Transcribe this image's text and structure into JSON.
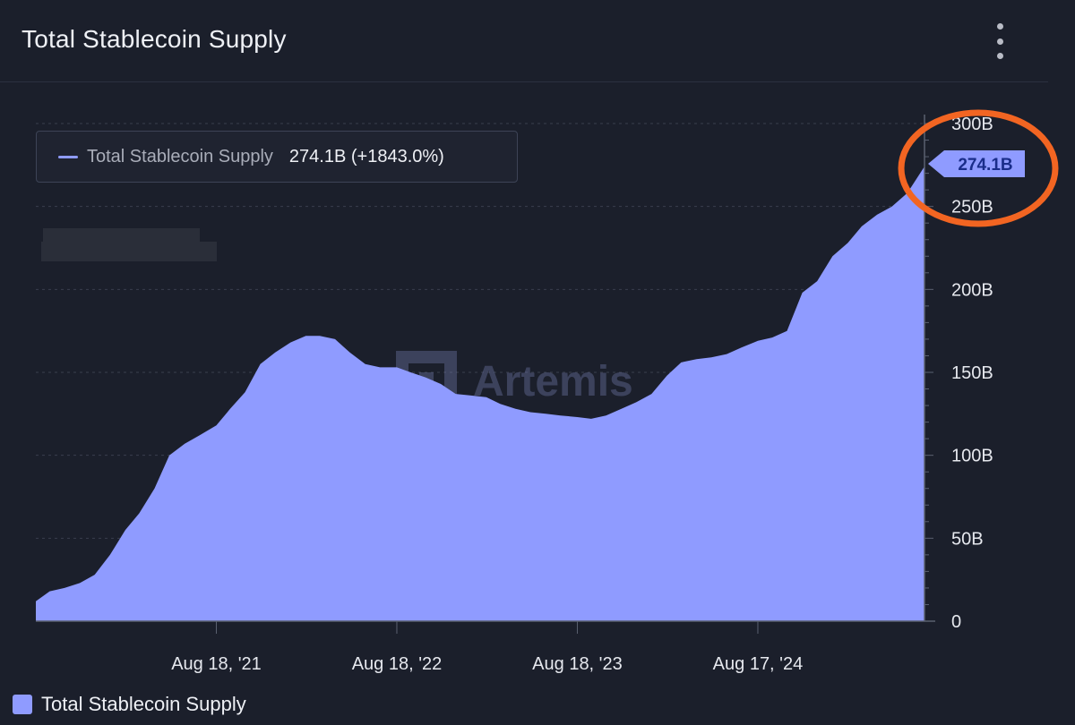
{
  "header": {
    "title": "Total Stablecoin Supply",
    "menu_icon": "kebab-menu-icon"
  },
  "tooltip": {
    "series_name": "Total Stablecoin Supply",
    "value_text": "274.1B (+1843.0%)"
  },
  "watermark": "Artemis",
  "legend": {
    "label": "Total Stablecoin Supply"
  },
  "colors": {
    "background": "#1b1f2b",
    "series": "#8f9bff",
    "annotation_circle": "#f26522"
  },
  "chart_data": {
    "type": "area",
    "title": "Total Stablecoin Supply",
    "x_tick_labels": [
      "Aug 18, '21",
      "Aug 18, '22",
      "Aug 18, '23",
      "Aug 17, '24"
    ],
    "y_tick_labels": [
      "0",
      "50B",
      "100B",
      "150B",
      "200B",
      "250B",
      "300B"
    ],
    "ylim": [
      0,
      300
    ],
    "grid": true,
    "legend_position": "bottom-left",
    "end_label": "274.1B",
    "series": [
      {
        "name": "Total Stablecoin Supply",
        "unit": "B",
        "points": [
          [
            "2020-08-18",
            12
          ],
          [
            "2020-09-15",
            18
          ],
          [
            "2020-10-15",
            20
          ],
          [
            "2020-11-15",
            23
          ],
          [
            "2020-12-15",
            28
          ],
          [
            "2021-01-15",
            40
          ],
          [
            "2021-02-15",
            55
          ],
          [
            "2021-03-15",
            65
          ],
          [
            "2021-04-15",
            80
          ],
          [
            "2021-05-15",
            100
          ],
          [
            "2021-06-15",
            107
          ],
          [
            "2021-07-15",
            112
          ],
          [
            "2021-08-18",
            118
          ],
          [
            "2021-09-15",
            128
          ],
          [
            "2021-10-15",
            138
          ],
          [
            "2021-11-15",
            155
          ],
          [
            "2021-12-15",
            162
          ],
          [
            "2022-01-15",
            168
          ],
          [
            "2022-02-15",
            172
          ],
          [
            "2022-03-15",
            172
          ],
          [
            "2022-04-15",
            170
          ],
          [
            "2022-05-15",
            162
          ],
          [
            "2022-06-15",
            155
          ],
          [
            "2022-07-15",
            153
          ],
          [
            "2022-08-18",
            153
          ],
          [
            "2022-09-15",
            150
          ],
          [
            "2022-10-15",
            147
          ],
          [
            "2022-11-15",
            143
          ],
          [
            "2022-12-15",
            137
          ],
          [
            "2023-01-15",
            136
          ],
          [
            "2023-02-15",
            135
          ],
          [
            "2023-03-15",
            131
          ],
          [
            "2023-04-15",
            128
          ],
          [
            "2023-05-15",
            126
          ],
          [
            "2023-06-15",
            125
          ],
          [
            "2023-07-15",
            124
          ],
          [
            "2023-08-18",
            123
          ],
          [
            "2023-09-15",
            122
          ],
          [
            "2023-10-15",
            124
          ],
          [
            "2023-11-15",
            128
          ],
          [
            "2023-12-15",
            132
          ],
          [
            "2024-01-15",
            137
          ],
          [
            "2024-02-15",
            148
          ],
          [
            "2024-03-15",
            156
          ],
          [
            "2024-04-15",
            158
          ],
          [
            "2024-05-15",
            159
          ],
          [
            "2024-06-15",
            161
          ],
          [
            "2024-07-15",
            165
          ],
          [
            "2024-08-17",
            169
          ],
          [
            "2024-09-15",
            171
          ],
          [
            "2024-10-15",
            175
          ],
          [
            "2024-11-15",
            198
          ],
          [
            "2024-12-15",
            205
          ],
          [
            "2025-01-15",
            220
          ],
          [
            "2025-02-15",
            228
          ],
          [
            "2025-03-15",
            238
          ],
          [
            "2025-04-15",
            245
          ],
          [
            "2025-05-15",
            250
          ],
          [
            "2025-06-15",
            258
          ],
          [
            "2025-07-20",
            274.1
          ]
        ]
      }
    ]
  }
}
